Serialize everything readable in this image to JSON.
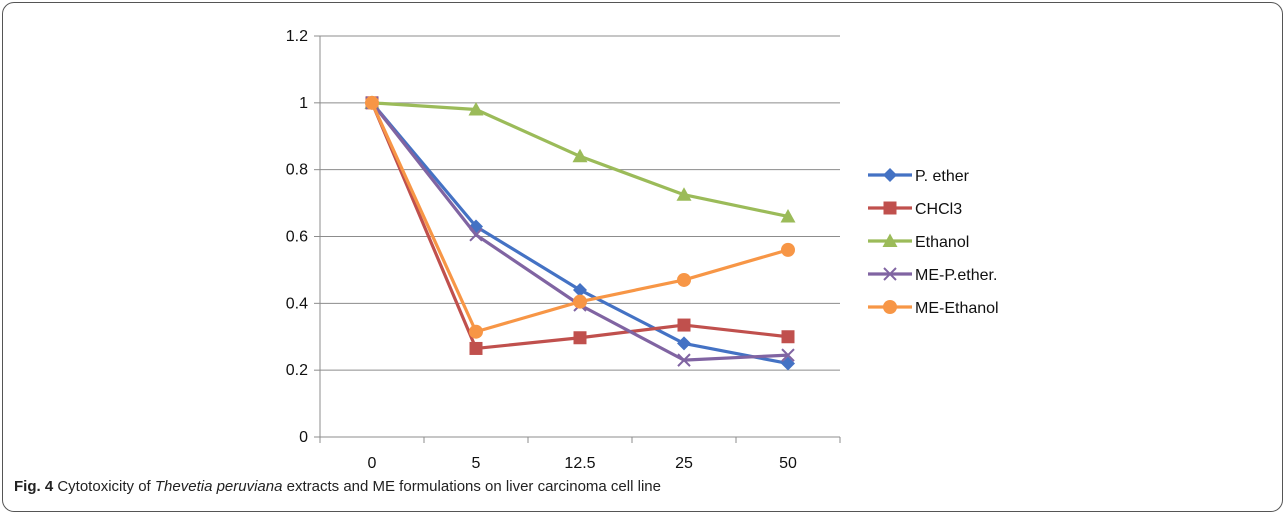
{
  "chart_data": {
    "type": "line",
    "categories": [
      "0",
      "5",
      "12.5",
      "25",
      "50"
    ],
    "ylim": [
      0,
      1.2
    ],
    "yticks": [
      "0",
      "0.2",
      "0.4",
      "0.6",
      "0.8",
      "1",
      "1.2"
    ],
    "ytick_values": [
      0,
      0.2,
      0.4,
      0.6,
      0.8,
      1.0,
      1.2
    ],
    "grid": "horizontal",
    "legend_position": "right",
    "series": [
      {
        "name": "P. ether",
        "color": "#4472C4",
        "marker": "diamond",
        "values": [
          1.0,
          0.63,
          0.44,
          0.28,
          0.22
        ]
      },
      {
        "name": "CHCl3",
        "color": "#C0504D",
        "marker": "square",
        "values": [
          1.0,
          0.265,
          0.297,
          0.335,
          0.3
        ]
      },
      {
        "name": "Ethanol",
        "color": "#9BBB59",
        "marker": "triangle",
        "values": [
          1.0,
          0.98,
          0.84,
          0.725,
          0.66
        ]
      },
      {
        "name": "ME-P.ether.",
        "color": "#8064A2",
        "marker": "x",
        "values": [
          1.0,
          0.605,
          0.395,
          0.23,
          0.245
        ]
      },
      {
        "name": "ME-Ethanol",
        "color": "#F79646",
        "marker": "circle",
        "values": [
          1.0,
          0.315,
          0.405,
          0.47,
          0.56
        ]
      }
    ]
  },
  "caption": {
    "label": "Fig. 4",
    "text_before": " Cytotoxicity of ",
    "species": "Thevetia peruviana",
    "text_after": " extracts and ME formulations on liver carcinoma cell line"
  }
}
